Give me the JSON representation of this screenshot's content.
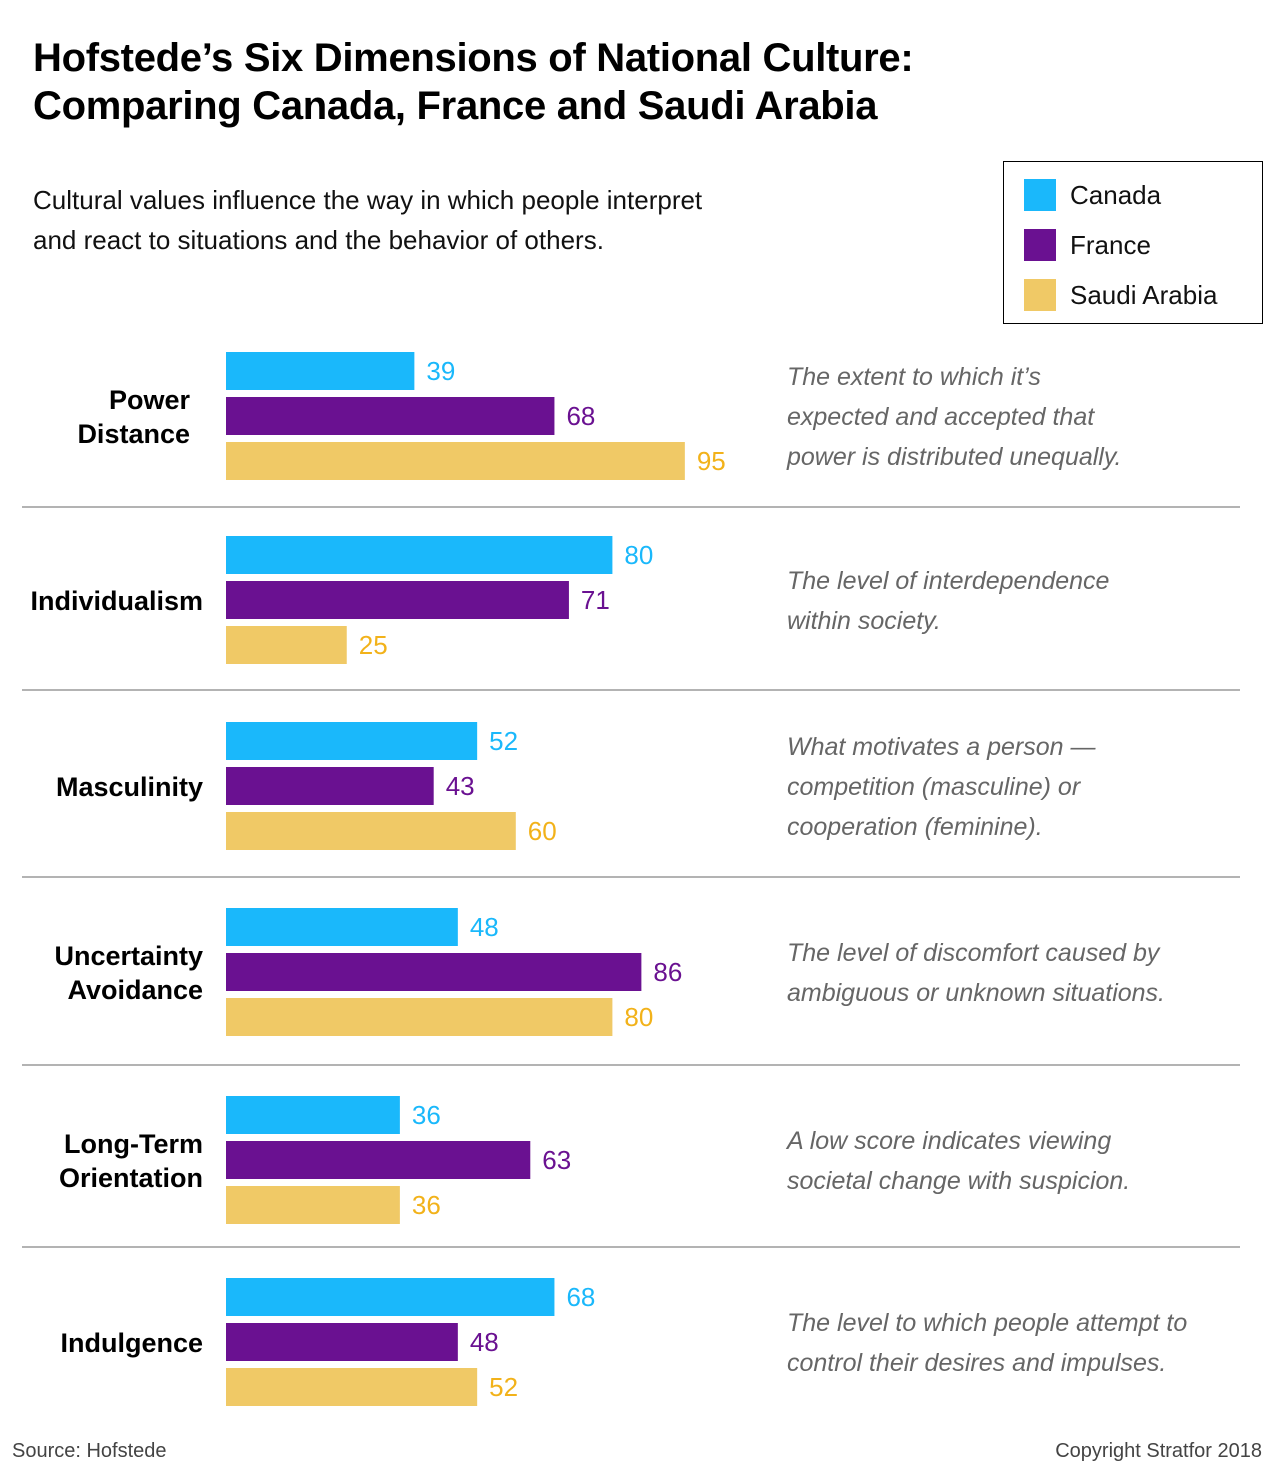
{
  "header": {
    "title_line1": "Hofstede’s Six Dimensions of National Culture:",
    "title_line2": "Comparing Canada, France and Saudi Arabia",
    "subtitle_line1": "Cultural values influence the way in which people interpret",
    "subtitle_line2": "and react to situations and the behavior of others."
  },
  "legend": {
    "placement": "top-right",
    "items": [
      {
        "label": "Canada",
        "color": "#1ab8fb"
      },
      {
        "label": "France",
        "color": "#6a1191"
      },
      {
        "label": "Saudi Arabia",
        "color": "#f0c966"
      }
    ]
  },
  "chart_data": {
    "type": "bar",
    "orientation": "horizontal",
    "grid": false,
    "xlim": [
      0,
      100
    ],
    "categories": [
      {
        "label_lines": [
          "Power",
          "Distance"
        ],
        "description_lines": [
          "The extent to which it’s",
          "expected and accepted that",
          "power is distributed unequally."
        ]
      },
      {
        "label_lines": [
          "Individualism"
        ],
        "description_lines": [
          "The level of interdependence",
          "within society."
        ]
      },
      {
        "label_lines": [
          "Masculinity"
        ],
        "description_lines": [
          "What motivates a person —",
          "competition (masculine) or",
          "cooperation (feminine)."
        ]
      },
      {
        "label_lines": [
          "Uncertainty",
          "Avoidance"
        ],
        "description_lines": [
          "The level of discomfort caused by",
          "ambiguous or unknown situations."
        ]
      },
      {
        "label_lines": [
          "Long-Term",
          "Orientation"
        ],
        "description_lines": [
          "A low score indicates viewing",
          "societal change with suspicion."
        ]
      },
      {
        "label_lines": [
          "Indulgence"
        ],
        "description_lines": [
          "The level to which people attempt to",
          "control their desires and impulses."
        ]
      }
    ],
    "series": [
      {
        "name": "Canada",
        "color": "#1ab8fb",
        "label_color": "#1ab8fb",
        "values": [
          39,
          80,
          52,
          48,
          36,
          68
        ]
      },
      {
        "name": "France",
        "color": "#6a1191",
        "label_color": "#6a1191",
        "values": [
          68,
          71,
          43,
          86,
          63,
          48
        ]
      },
      {
        "name": "Saudi Arabia",
        "color": "#f0c966",
        "label_color": "#f2b21a",
        "values": [
          95,
          25,
          60,
          80,
          36,
          52
        ]
      }
    ]
  },
  "footer": {
    "source": "Source: Hofstede",
    "copyright": "Copyright Stratfor 2018"
  }
}
